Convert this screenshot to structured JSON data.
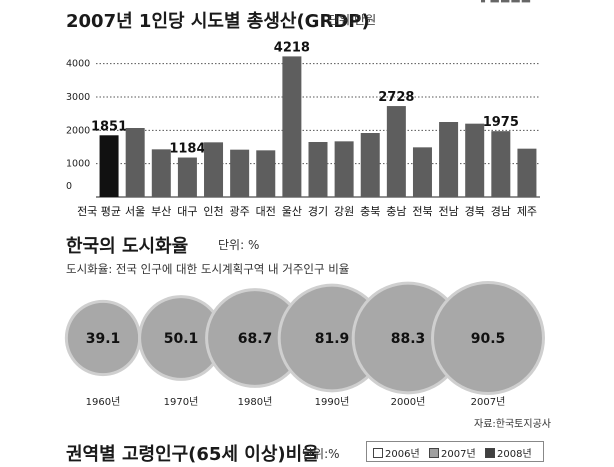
{
  "charts": {
    "grdp": {
      "title": "2007년 1인당 시도별 총생산(GRDP)",
      "unit": "단위:만원"
    },
    "urban": {
      "title": "한국의 도시화율",
      "unit": "단위: %",
      "subtitle": "도시화율: 전국 인구에 대한 도시계획구역 내 거주인구 비율",
      "source": "자료:한국토지공사"
    },
    "aging": {
      "title": "권역별 고령인구(65세 이상)비율",
      "unit": "단위:%",
      "legend": [
        "2006년",
        "2007년",
        "2008년"
      ]
    }
  },
  "chart_data": [
    {
      "type": "bar",
      "title": "2007년 1인당 시도별 총생산(GRDP)",
      "categories": [
        "전국 평균",
        "서울",
        "부산",
        "대구",
        "인천",
        "광주",
        "대전",
        "울산",
        "경기",
        "강원",
        "충북",
        "충남",
        "전북",
        "전남",
        "경북",
        "경남",
        "제주"
      ],
      "values": [
        1851,
        2070,
        1430,
        1184,
        1640,
        1420,
        1400,
        4218,
        1650,
        1670,
        1920,
        2728,
        1490,
        2250,
        2200,
        1975,
        1450
      ],
      "data_labels": {
        "전국 평균": "1851",
        "대구": "1184",
        "울산": "4218",
        "충남": "2728",
        "경남": "1975"
      },
      "highlight": "전국 평균",
      "yticks": [
        0,
        1000,
        2000,
        3000,
        4000
      ],
      "ylim": [
        0,
        4500
      ],
      "grid": true,
      "colors": {
        "highlight": "#111111",
        "bar": "#5e5e5e"
      }
    },
    {
      "type": "bubble",
      "title": "한국의 도시화율",
      "categories": [
        "1960년",
        "1970년",
        "1980년",
        "1990년",
        "2000년",
        "2007년"
      ],
      "values": [
        39.1,
        50.1,
        68.7,
        81.9,
        88.3,
        90.5
      ],
      "colors": {
        "fill": "#a8a8a8",
        "ring": "#cfcfcf"
      }
    },
    {
      "type": "bar",
      "title": "권역별 고령인구(65세 이상)비율",
      "series": [
        {
          "name": "2006년",
          "color": "#ffffff"
        },
        {
          "name": "2007년",
          "color": "#a0a0a0"
        },
        {
          "name": "2008년",
          "color": "#404040"
        }
      ]
    }
  ]
}
